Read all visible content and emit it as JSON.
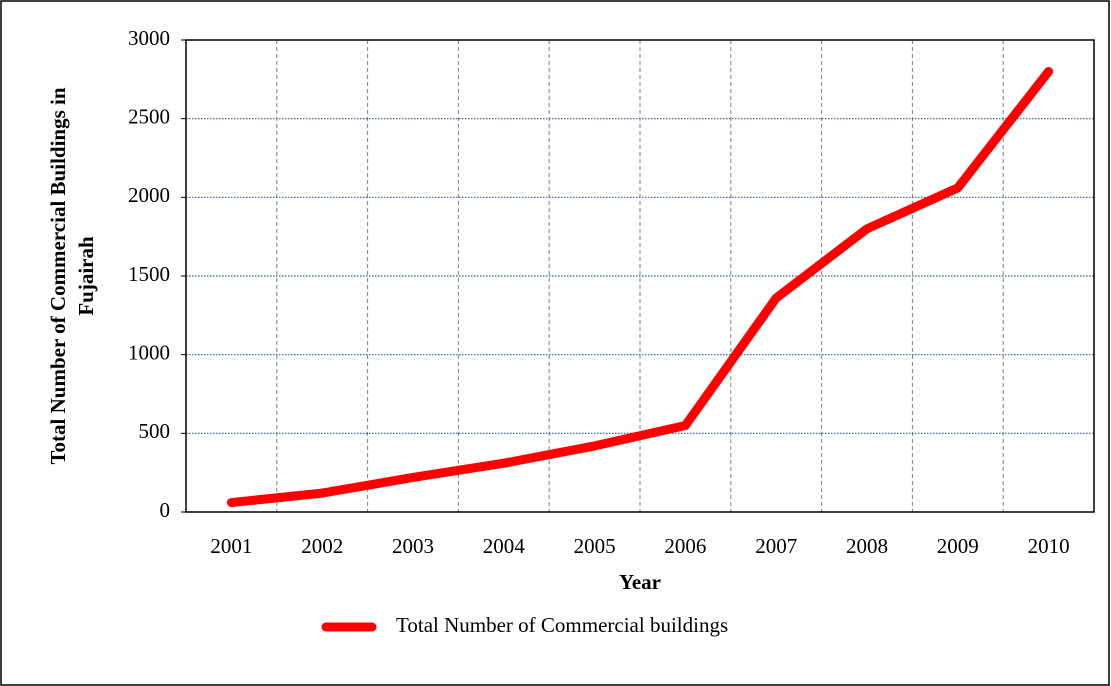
{
  "chart_data": {
    "type": "line",
    "xlabel": "Year",
    "ylabel": [
      "Total Number of Commercial Buildings in",
      "Fujairah"
    ],
    "categories": [
      "2001",
      "2002",
      "2003",
      "2004",
      "2005",
      "2006",
      "2007",
      "2008",
      "2009",
      "2010"
    ],
    "series": [
      {
        "name": "Total Number of Commercial buildings",
        "color": "#ff0000",
        "values": [
          60,
          120,
          220,
          310,
          420,
          550,
          1360,
          1800,
          2060,
          2800
        ]
      }
    ],
    "ylim": [
      0,
      3000
    ],
    "yticks": [
      0,
      500,
      1000,
      1500,
      2000,
      2500,
      3000
    ],
    "grid": true,
    "legend": "bottom"
  }
}
